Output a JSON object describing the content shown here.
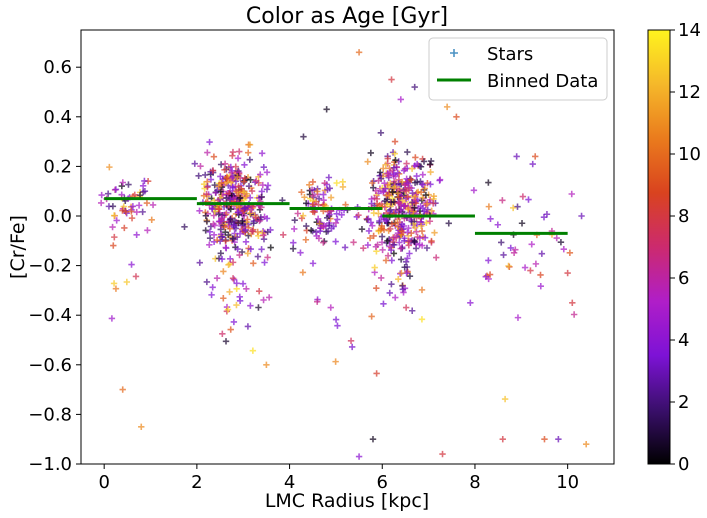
{
  "chart_data": {
    "type": "scatter",
    "title": "Color as Age [Gyr]",
    "xlabel": "LMC Radius [kpc]",
    "ylabel": "[Cr/Fe]",
    "xlim": [
      -0.5,
      11.0
    ],
    "ylim": [
      -1.0,
      0.75
    ],
    "xticks": [
      0,
      2,
      4,
      6,
      8,
      10
    ],
    "yticks": [
      -1.0,
      -0.8,
      -0.6,
      -0.4,
      -0.2,
      0.0,
      0.2,
      0.4,
      0.6
    ],
    "ytick_labels": [
      "−1.0",
      "−0.8",
      "−0.6",
      "−0.4",
      "−0.2",
      "0.0",
      "0.2",
      "0.4",
      "0.6"
    ],
    "xtick_labels": [
      "0",
      "2",
      "4",
      "6",
      "8",
      "10"
    ],
    "grid": false,
    "legend": {
      "placement": "top-right",
      "entries": [
        {
          "label": "Stars",
          "marker": "plus",
          "color": "#1f77b4"
        },
        {
          "label": "Binned Data",
          "marker": "line",
          "color": "#008000"
        }
      ]
    },
    "colorbar": {
      "colormap": "gnuplot-like (black → purple → red → orange → yellow)",
      "range": [
        0,
        14
      ],
      "ticks": [
        0,
        2,
        4,
        6,
        8,
        10,
        12,
        14
      ],
      "tick_labels": [
        "0",
        "2",
        "4",
        "6",
        "8",
        "10",
        "12",
        "14"
      ],
      "colors": [
        "#000000",
        "#3a0f6b",
        "#7d12d6",
        "#b01ec8",
        "#cc2a6e",
        "#d9431f",
        "#ea7b1d",
        "#f5b82a",
        "#fff31e"
      ]
    },
    "binned_data": {
      "name": "Binned Data",
      "color": "#008000",
      "bins": [
        {
          "x_start": 0,
          "x_end": 2,
          "y": 0.07
        },
        {
          "x_start": 2,
          "x_end": 4,
          "y": 0.05
        },
        {
          "x_start": 4,
          "x_end": 6,
          "y": 0.03
        },
        {
          "x_start": 6,
          "x_end": 8,
          "y": 0.0
        },
        {
          "x_start": 8,
          "x_end": 10,
          "y": -0.07
        }
      ]
    },
    "stars": {
      "name": "Stars",
      "marker": "plus",
      "clusters": [
        {
          "x_center": 0.5,
          "x_spread": 0.45,
          "y_center": 0.05,
          "y_spread": 0.08,
          "count": 60
        },
        {
          "x_center": 2.8,
          "x_spread": 0.6,
          "y_center": 0.05,
          "y_spread": 0.12,
          "count": 420
        },
        {
          "x_center": 4.7,
          "x_spread": 0.5,
          "y_center": 0.02,
          "y_spread": 0.1,
          "count": 110
        },
        {
          "x_center": 6.4,
          "x_spread": 0.6,
          "y_center": 0.05,
          "y_spread": 0.13,
          "count": 430
        },
        {
          "x_center": 9.0,
          "x_spread": 0.8,
          "y_center": -0.1,
          "y_spread": 0.2,
          "count": 45
        }
      ],
      "outliers": [
        {
          "x": 5.5,
          "y": 0.66,
          "age": 10
        },
        {
          "x": 6.7,
          "y": 0.52,
          "age": 2
        },
        {
          "x": 6.4,
          "y": 0.47,
          "age": 5
        },
        {
          "x": 7.4,
          "y": 0.44,
          "age": 11
        },
        {
          "x": 6.2,
          "y": 0.55,
          "age": 8
        },
        {
          "x": 4.8,
          "y": 0.43,
          "age": 0.5
        },
        {
          "x": 0.4,
          "y": -0.7,
          "age": 10
        },
        {
          "x": 0.8,
          "y": -0.85,
          "age": 11
        },
        {
          "x": 5.5,
          "y": -0.97,
          "age": 4
        },
        {
          "x": 7.3,
          "y": -0.96,
          "age": 8
        },
        {
          "x": 10.4,
          "y": -0.92,
          "age": 11
        },
        {
          "x": 9.5,
          "y": -0.9,
          "age": 9
        },
        {
          "x": 8.6,
          "y": -0.9,
          "age": 8
        },
        {
          "x": 9.8,
          "y": -0.9,
          "age": 3
        },
        {
          "x": 5.8,
          "y": -0.9,
          "age": 0.5
        },
        {
          "x": 7.9,
          "y": -0.35,
          "age": 4
        },
        {
          "x": 10.1,
          "y": -0.35,
          "age": 8
        },
        {
          "x": 10.0,
          "y": -0.23,
          "age": 8
        },
        {
          "x": 10.3,
          "y": 0.0,
          "age": 3
        },
        {
          "x": 9.3,
          "y": 0.24,
          "age": 9
        },
        {
          "x": 8.9,
          "y": 0.24,
          "age": 3
        },
        {
          "x": 4.3,
          "y": 0.32,
          "age": 1
        },
        {
          "x": 7.6,
          "y": 0.4,
          "age": 9
        },
        {
          "x": 3.5,
          "y": -0.6,
          "age": 11
        }
      ]
    }
  }
}
